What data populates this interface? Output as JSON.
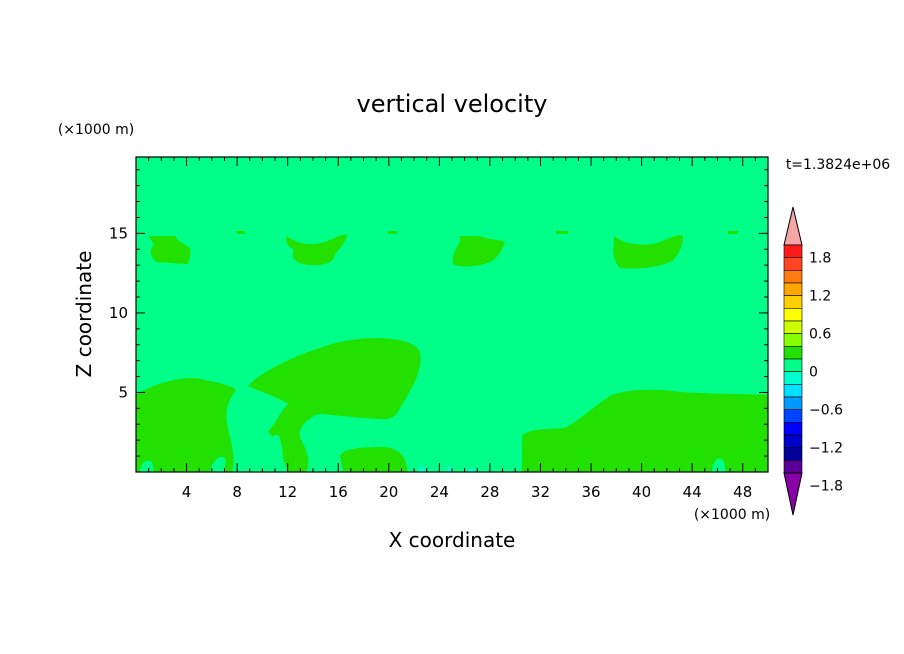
{
  "chart_data": {
    "type": "heatmap",
    "title": "vertical velocity",
    "xlabel": "X coordinate",
    "ylabel": "Z coordinate",
    "x_unit": "(×1000 m)",
    "y_unit": "(×1000 m)",
    "time_label": "t=1.3824e+06",
    "xlim": [
      0,
      50
    ],
    "ylim": [
      0,
      19.8
    ],
    "x_ticks": [
      4,
      8,
      12,
      16,
      20,
      24,
      28,
      32,
      36,
      40,
      44,
      48
    ],
    "y_ticks": [
      5,
      10,
      15
    ],
    "background_level_color": "#00ff88",
    "positive_region_color": "#22e000",
    "regions_positive": [
      {
        "name": "left low lobe",
        "x": [
          0,
          7.6
        ],
        "z": [
          0,
          6
        ]
      },
      {
        "name": "central updraft",
        "x": [
          8.9,
          22.4
        ],
        "z": [
          3.2,
          8.5
        ]
      },
      {
        "name": "right low lobe",
        "x": [
          30.5,
          50
        ],
        "z": [
          0,
          5.3
        ]
      },
      {
        "name": "upper cell 1",
        "x": [
          0.9,
          4.1
        ],
        "z": [
          13.3,
          14.9
        ]
      },
      {
        "name": "upper cell 2",
        "x": [
          11.8,
          16.6
        ],
        "z": [
          12.9,
          14.9
        ]
      },
      {
        "name": "upper cell 3",
        "x": [
          25,
          29.5
        ],
        "z": [
          12.9,
          14.9
        ]
      },
      {
        "name": "upper cell 4",
        "x": [
          37.7,
          43.3
        ],
        "z": [
          12.7,
          14.9
        ]
      }
    ],
    "colorbar": {
      "labels": [
        "1.8",
        "1.2",
        "0.6",
        "0",
        "-0.6",
        "-1.2",
        "-1.8"
      ],
      "over_color": "#f4a6a6",
      "under_color": "#8800a8",
      "colors": [
        "#ff1a1a",
        "#ff4422",
        "#ff7a10",
        "#ffa500",
        "#ffd000",
        "#ffff00",
        "#ccff00",
        "#88ff00",
        "#22e000",
        "#00ff88",
        "#00ffd0",
        "#00e0ff",
        "#0099ff",
        "#0044ff",
        "#0000ff",
        "#0000cc",
        "#000099",
        "#5a0099"
      ]
    }
  }
}
